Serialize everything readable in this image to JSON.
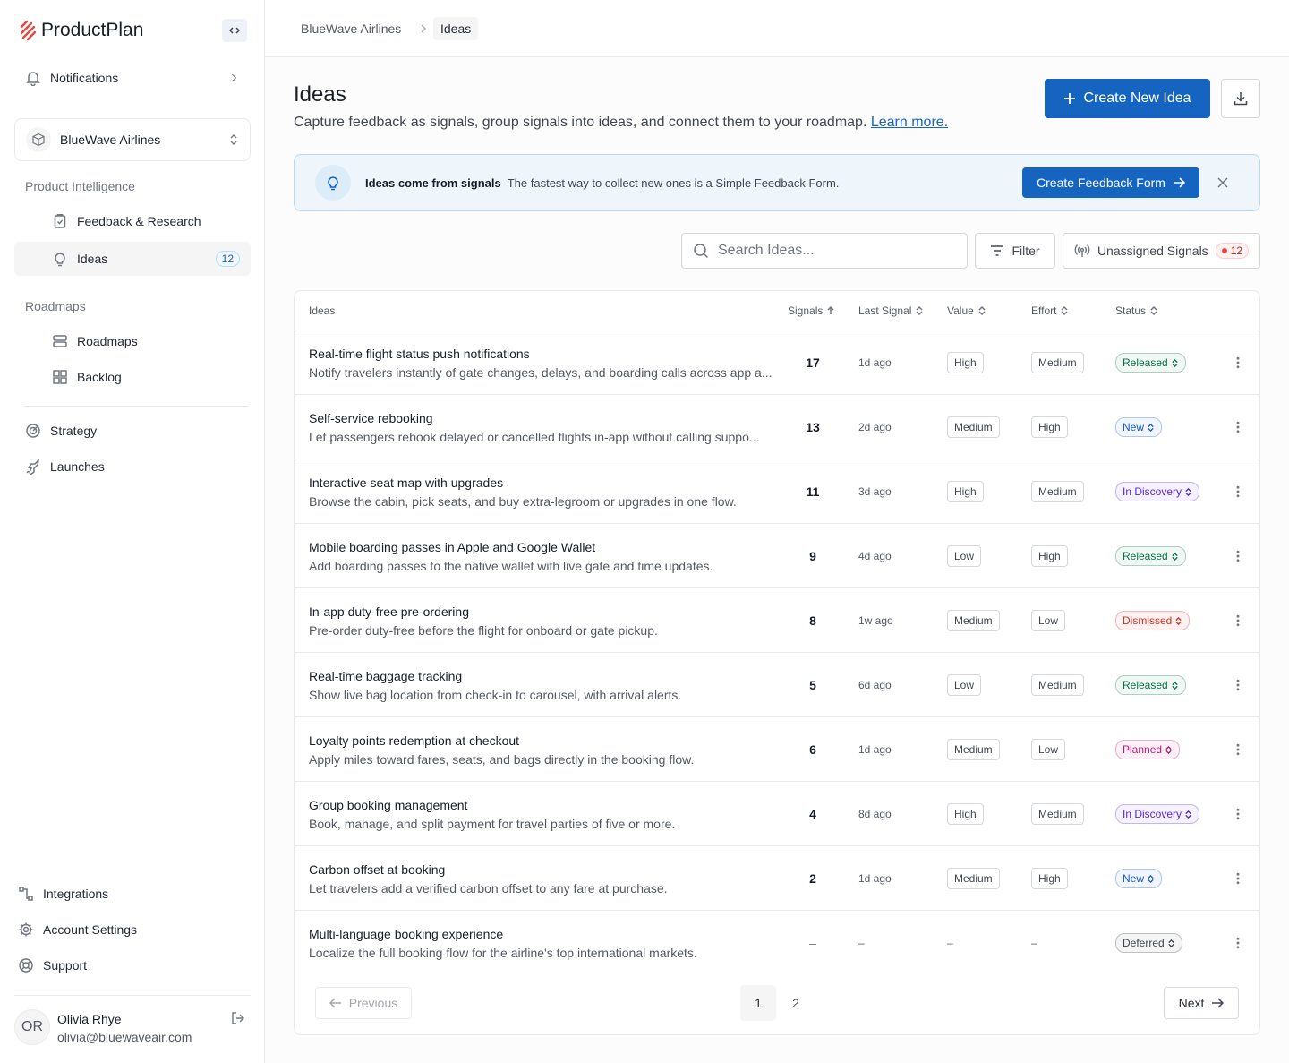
{
  "sidebar": {
    "brand": "ProductPlan",
    "notifications": "Notifications",
    "workspace": "BlueWave Airlines",
    "sections": [
      {
        "title": "Product Intelligence",
        "items": [
          {
            "label": "Feedback & Research"
          },
          {
            "label": "Ideas",
            "badge": 12
          }
        ]
      },
      {
        "title": "Roadmaps",
        "items": [
          {
            "label": "Roadmaps"
          },
          {
            "label": "Backlog"
          }
        ]
      }
    ],
    "nav": [
      "Strategy",
      "Launches"
    ],
    "footer_nav": [
      "Integrations",
      "Account Settings",
      "Support"
    ],
    "user": {
      "initials": "OR",
      "name": "Olivia Rhye",
      "email": "olivia@bluewaveair.com"
    }
  },
  "breadcrumb": [
    "BlueWave Airlines",
    "Ideas"
  ],
  "header": {
    "title": "Ideas",
    "description": "Capture feedback as signals, group signals into ideas, and connect them to your roadmap.",
    "link": "Learn more.",
    "primary_button": "Create New Idea"
  },
  "banner": {
    "title": "Ideas come from signals",
    "text": "The fastest way to collect new ones is a Simple Feedback Form.",
    "button": "Create Feedback Form"
  },
  "toolbar": {
    "search_placeholder": "Search Ideas...",
    "filter": "Filter",
    "unassigned": "Unassigned Signals",
    "unassigned_count": 12
  },
  "table": {
    "columns": [
      "Ideas",
      "Signals",
      "Last Signal",
      "Value",
      "Effort",
      "Status"
    ],
    "rows": [
      {
        "title": "Real-time flight status push notifications",
        "description": "Notify travelers instantly of gate changes, delays, and boarding calls across app a...",
        "signals": 17,
        "last_signal": "1d ago",
        "value": "High",
        "effort": "Medium",
        "status": "Released",
        "status_color": "#067647"
      },
      {
        "title": "Self-service rebooking",
        "description": "Let passengers rebook delayed or cancelled flights in-app without calling suppo...",
        "signals": 13,
        "last_signal": "2d ago",
        "value": "Medium",
        "effort": "High",
        "status": "New",
        "status_color": "#175cd3"
      },
      {
        "title": "Interactive seat map with upgrades",
        "description": "Browse the cabin, pick seats, and buy extra-legroom or upgrades in one flow.",
        "signals": 11,
        "last_signal": "3d ago",
        "value": "High",
        "effort": "Medium",
        "status": "In Discovery",
        "status_color": "#5925dc"
      },
      {
        "title": "Mobile boarding passes in Apple and Google Wallet",
        "description": "Add boarding passes to the native wallet with live gate and time updates.",
        "signals": 9,
        "last_signal": "4d ago",
        "value": "Low",
        "effort": "High",
        "status": "Released",
        "status_color": "#067647"
      },
      {
        "title": "In-app duty-free pre-ordering",
        "description": "Pre-order duty-free before the flight for onboard or gate pickup.",
        "signals": 8,
        "last_signal": "1w ago",
        "value": "Medium",
        "effort": "Low",
        "status": "Dismissed",
        "status_color": "#d92d20"
      },
      {
        "title": "Real-time baggage tracking",
        "description": "Show live bag location from check-in to carousel, with arrival alerts.",
        "signals": 5,
        "last_signal": "6d ago",
        "value": "Low",
        "effort": "Medium",
        "status": "Released",
        "status_color": "#067647"
      },
      {
        "title": "Loyalty points redemption at checkout",
        "description": "Apply miles toward fares, seats, and bags directly in the booking flow.",
        "signals": 6,
        "last_signal": "1d ago",
        "value": "Medium",
        "effort": "Low",
        "status": "Planned",
        "status_color": "#c11574"
      },
      {
        "title": "Group booking management",
        "description": "Book, manage, and split payment for travel parties of five or more.",
        "signals": 4,
        "last_signal": "8d ago",
        "value": "High",
        "effort": "Medium",
        "status": "In Discovery",
        "status_color": "#5925dc"
      },
      {
        "title": "Carbon offset at booking",
        "description": "Let travelers add a verified carbon offset to any fare at purchase.",
        "signals": 2,
        "last_signal": "1d ago",
        "value": "Medium",
        "effort": "High",
        "status": "New",
        "status_color": "#175cd3"
      },
      {
        "title": "Multi-language booking experience",
        "description": "Localize the full booking flow for the airline's top international markets.",
        "signals": "–",
        "last_signal": "–",
        "value": "–",
        "effort": "–",
        "status": "Deferred",
        "status_color": "#414651"
      }
    ]
  },
  "pagination": {
    "previous": "Previous",
    "pages": [
      1,
      2
    ],
    "next": "Next"
  }
}
